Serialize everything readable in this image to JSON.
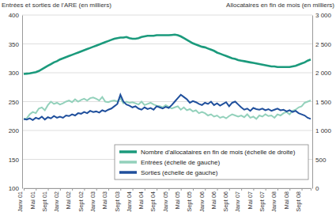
{
  "chart_data": {
    "type": "line",
    "y_label": "Entrées et sorties de l'ARE (en milliers)",
    "y2_label": "Allocataires en fin de mois (en milliers)",
    "categories": [
      "Janv 01",
      null,
      null,
      null,
      "Mai 01",
      null,
      null,
      null,
      "Sept 01",
      null,
      null,
      null,
      "Janv 02",
      null,
      null,
      null,
      "Mai 02",
      null,
      null,
      null,
      "Sept 02",
      null,
      null,
      null,
      "Janv 03",
      null,
      null,
      null,
      "Mai 03",
      null,
      null,
      null,
      "Sept 03",
      null,
      null,
      null,
      "Janv 04",
      null,
      null,
      null,
      "Mai 04",
      null,
      null,
      null,
      "Sept 04",
      null,
      null,
      null,
      "Janv 05",
      null,
      null,
      null,
      "Mai 05",
      null,
      null,
      null,
      "Sept 05",
      null,
      null,
      null,
      "Janv 06",
      null,
      null,
      null,
      "Mai 06",
      null,
      null,
      null,
      "Sept 06",
      null,
      null,
      null,
      "Janv 07",
      null,
      null,
      null,
      "Mai 07",
      null,
      null,
      null,
      "Sept 07",
      null,
      null,
      null,
      "Janv 08",
      null,
      null,
      null,
      "Mai 08",
      null,
      null,
      null,
      "Sept 08",
      null,
      null,
      null
    ],
    "series": [
      {
        "name": "Nombre d'allocataires en fin de mois (échelle de droite)",
        "color": "#1b9a7c",
        "axis": "y2",
        "values": [
          1980,
          1985,
          1990,
          2000,
          2010,
          2030,
          2060,
          2090,
          2120,
          2150,
          2180,
          2200,
          2230,
          2250,
          2270,
          2290,
          2310,
          2330,
          2350,
          2370,
          2390,
          2410,
          2430,
          2450,
          2470,
          2490,
          2510,
          2530,
          2550,
          2570,
          2590,
          2600,
          2610,
          2610,
          2620,
          2600,
          2590,
          2590,
          2600,
          2620,
          2630,
          2640,
          2640,
          2640,
          2650,
          2650,
          2650,
          2650,
          2650,
          2655,
          2660,
          2650,
          2630,
          2600,
          2570,
          2540,
          2510,
          2490,
          2470,
          2450,
          2440,
          2420,
          2400,
          2380,
          2350,
          2330,
          2310,
          2290,
          2270,
          2250,
          2240,
          2220,
          2210,
          2200,
          2190,
          2180,
          2170,
          2160,
          2150,
          2140,
          2130,
          2120,
          2110,
          2110,
          2100,
          2100,
          2100,
          2100,
          2100,
          2110,
          2120,
          2140,
          2160,
          2180,
          2210,
          2230
        ]
      },
      {
        "name": "Entrées (échelle de gauche)",
        "color": "#93d1bb",
        "values": [
          220,
          221,
          228,
          232,
          230,
          238,
          240,
          235,
          244,
          250,
          246,
          248,
          245,
          247,
          250,
          252,
          249,
          254,
          250,
          253,
          255,
          252,
          256,
          257,
          255,
          252,
          258,
          250,
          249,
          251,
          252,
          250,
          256,
          247,
          250,
          248,
          249,
          247,
          245,
          250,
          244,
          246,
          248,
          245,
          243,
          242,
          240,
          244,
          241,
          238,
          240,
          242,
          236,
          240,
          235,
          237,
          233,
          235,
          230,
          232,
          230,
          226,
          228,
          224,
          226,
          222,
          224,
          221,
          225,
          228,
          226,
          224,
          226,
          223,
          228,
          222,
          224,
          220,
          226,
          224,
          228,
          225,
          226,
          222,
          228,
          226,
          230,
          232,
          228,
          234,
          236,
          240,
          242,
          248,
          250,
          252
        ]
      },
      {
        "name": "Sorties (échelle de gauche)",
        "color": "#1f4f9c",
        "values": [
          220,
          219,
          221,
          218,
          222,
          220,
          224,
          219,
          223,
          221,
          225,
          222,
          224,
          222,
          226,
          225,
          228,
          226,
          230,
          229,
          232,
          230,
          234,
          232,
          233,
          231,
          235,
          233,
          236,
          238,
          242,
          246,
          262,
          250,
          245,
          243,
          240,
          242,
          238,
          236,
          240,
          237,
          239,
          236,
          242,
          240,
          238,
          241,
          239,
          244,
          250,
          256,
          262,
          258,
          254,
          248,
          251,
          249,
          246,
          244,
          248,
          246,
          250,
          244,
          247,
          243,
          246,
          249,
          242,
          248,
          250,
          245,
          240,
          236,
          238,
          234,
          239,
          237,
          236,
          238,
          235,
          237,
          234,
          236,
          238,
          235,
          236,
          233,
          235,
          232,
          234,
          230,
          228,
          226,
          222,
          220
        ]
      }
    ],
    "ylim": [
      100,
      400
    ],
    "yticks": [
      100,
      150,
      200,
      250,
      300,
      350,
      400
    ],
    "y2lim": [
      0,
      3000
    ],
    "y2ticks": [
      0,
      500,
      {
        "value": 1000,
        "label": "1 000"
      },
      {
        "value": 1500,
        "label": "1 500"
      },
      {
        "value": 2000,
        "label": "2 000"
      },
      {
        "value": 2500,
        "label": "2 500"
      },
      {
        "value": 3000,
        "label": "3 000"
      }
    ],
    "grid": true,
    "legend": "center"
  }
}
